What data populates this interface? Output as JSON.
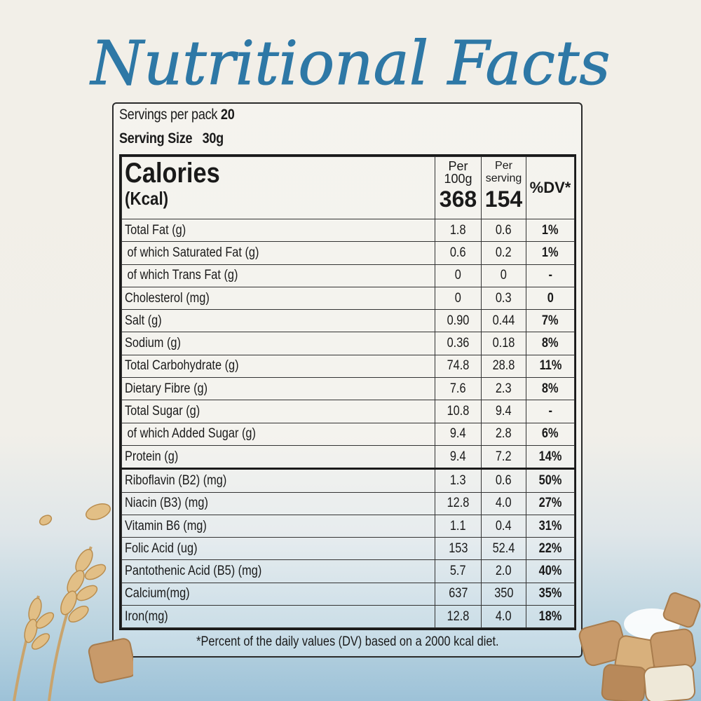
{
  "title": "Nutritional Facts",
  "servings": {
    "per_pack_label": "Servings per pack",
    "per_pack_value": "20",
    "size_label": "Serving Size",
    "size_value": "30g"
  },
  "header": {
    "calories": "Calories",
    "kcal": "(Kcal)",
    "col1": "Per",
    "col1b": "100g",
    "col1_value": "368",
    "col2": "Per",
    "col2b": "serving",
    "col2_value": "154",
    "col3": "%DV*"
  },
  "rows": [
    {
      "label": "Total Fat (g)",
      "per100": "1.8",
      "serving": "0.6",
      "dv": "1%"
    },
    {
      "label": " of which Saturated Fat (g)",
      "per100": "0.6",
      "serving": "0.2",
      "dv": "1%"
    },
    {
      "label": " of which Trans Fat (g)",
      "per100": "0",
      "serving": "0",
      "dv": "-"
    },
    {
      "label": "Cholesterol (mg)",
      "per100": "0",
      "serving": "0.3",
      "dv": "0"
    },
    {
      "label": "Salt (g)",
      "per100": "0.90",
      "serving": "0.44",
      "dv": "7%"
    },
    {
      "label": "Sodium (g)",
      "per100": "0.36",
      "serving": "0.18",
      "dv": "8%"
    },
    {
      "label": "Total Carbohydrate (g)",
      "per100": "74.8",
      "serving": "28.8",
      "dv": "11%"
    },
    {
      "label": "Dietary Fibre (g)",
      "per100": "7.6",
      "serving": "2.3",
      "dv": "8%"
    },
    {
      "label": "Total Sugar (g)",
      "per100": "10.8",
      "serving": "9.4",
      "dv": "-"
    },
    {
      "label": " of which Added Sugar (g)",
      "per100": "9.4",
      "serving": "2.8",
      "dv": "6%"
    },
    {
      "label": "Protein (g)",
      "per100": "9.4",
      "serving": "7.2",
      "dv": "14%"
    },
    {
      "label": "Riboflavin (B2) (mg)",
      "per100": "1.3",
      "serving": "0.6",
      "dv": "50%"
    },
    {
      "label": "Niacin (B3) (mg)",
      "per100": "12.8",
      "serving": "4.0",
      "dv": "27%"
    },
    {
      "label": "Vitamin B6 (mg)",
      "per100": "1.1",
      "serving": "0.4",
      "dv": "31%"
    },
    {
      "label": "Folic Acid (ug)",
      "per100": "153",
      "serving": "52.4",
      "dv": "22%"
    },
    {
      "label": "Pantothenic Acid (B5) (mg)",
      "per100": "5.7",
      "serving": "2.0",
      "dv": "40%"
    },
    {
      "label": "Calcium(mg)",
      "per100": "637",
      "serving": "350",
      "dv": "35%"
    },
    {
      "label": "Iron(mg)",
      "per100": "12.8",
      "serving": "4.0",
      "dv": "18%"
    }
  ],
  "footnote": "*Percent of the daily values (DV) based on a 2000 kcal diet.",
  "colors": {
    "title": "#2e78a6",
    "ink": "#1a1a1a"
  }
}
